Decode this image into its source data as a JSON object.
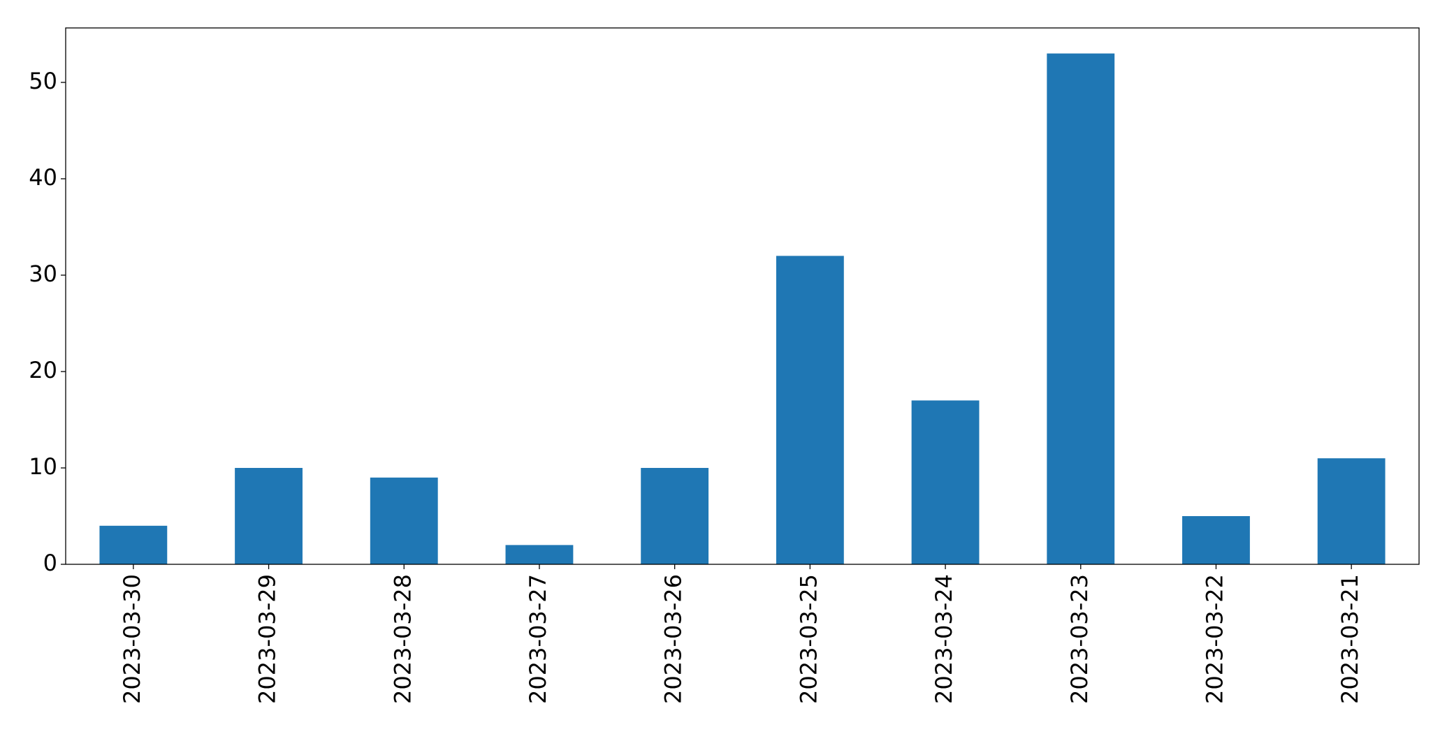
{
  "chart_data": {
    "type": "bar",
    "categories": [
      "2023-03-30",
      "2023-03-29",
      "2023-03-28",
      "2023-03-27",
      "2023-03-26",
      "2023-03-25",
      "2023-03-24",
      "2023-03-23",
      "2023-03-22",
      "2023-03-21"
    ],
    "values": [
      4,
      10,
      9,
      2,
      10,
      32,
      17,
      53,
      5,
      11
    ],
    "color": "#1f77b4",
    "ylim": [
      0,
      55.65
    ],
    "yticks": [
      0,
      10,
      20,
      30,
      40,
      50
    ],
    "grid": false
  }
}
